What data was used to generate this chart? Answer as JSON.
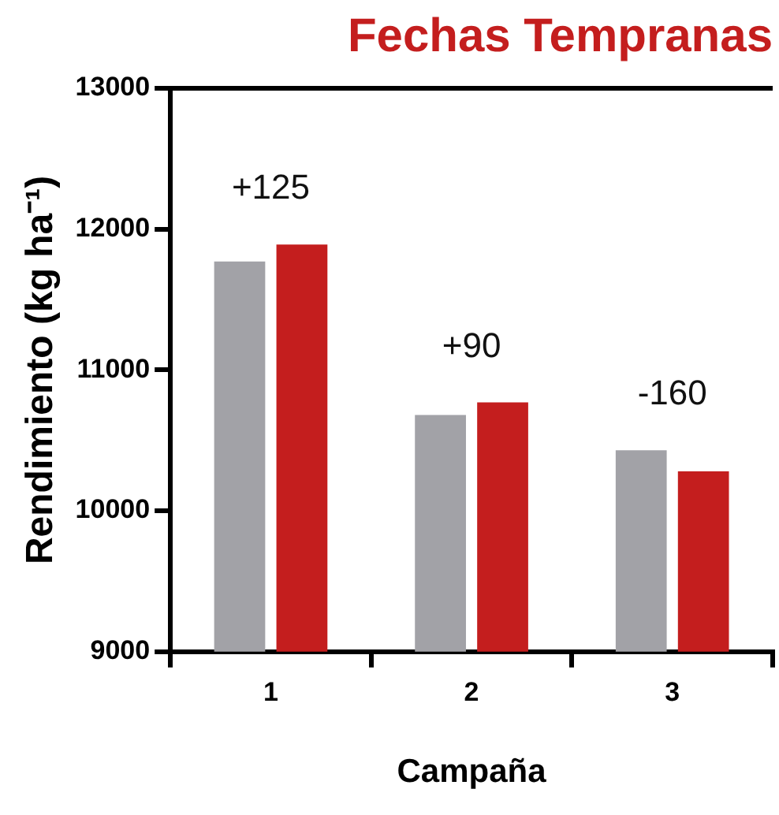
{
  "chart_data": {
    "type": "bar",
    "title": "Fechas Tempranas",
    "xlabel": "Campaña",
    "ylabel": "Rendimiento (kg ha⁻¹)",
    "categories": [
      "1",
      "2",
      "3"
    ],
    "series": [
      {
        "color": "#a2a2a7",
        "values": [
          11770,
          10680,
          10430
        ]
      },
      {
        "color": "#c41e1e",
        "values": [
          11890,
          10770,
          10280
        ]
      }
    ],
    "ylim": [
      9000,
      13000
    ],
    "yticks": [
      9000,
      10000,
      11000,
      12000,
      13000
    ],
    "grid": false,
    "legend": false,
    "annotations": [
      "+125",
      "+90",
      "-160"
    ]
  }
}
